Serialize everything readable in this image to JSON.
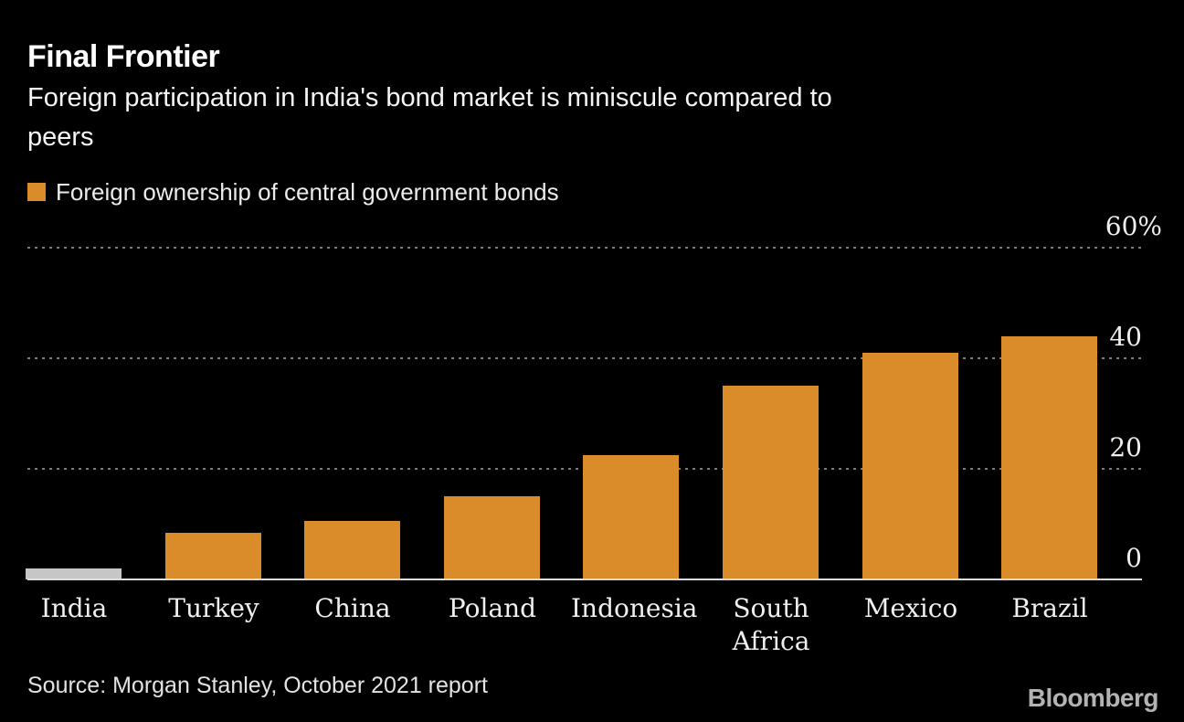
{
  "header": {
    "title": "Final Frontier",
    "subtitle": "Foreign participation in India's bond market is miniscule compared to\npeers"
  },
  "legend": {
    "label": "Foreign ownership of central government bonds",
    "swatch_color": "#DB8C2A"
  },
  "chart_data": {
    "type": "bar",
    "title": "Final Frontier",
    "subtitle": "Foreign participation in India's bond market is miniscule compared to peers",
    "series_name": "Foreign ownership of central government bonds",
    "categories": [
      "India",
      "Turkey",
      "China",
      "Poland",
      "Indonesia",
      "South Africa",
      "Mexico",
      "Brazil"
    ],
    "values": [
      2,
      8.5,
      10.5,
      15,
      22.5,
      35,
      41,
      44
    ],
    "unit": "%",
    "ylim": [
      0,
      60
    ],
    "yticks": [
      0,
      20,
      40,
      60
    ],
    "ytick_labels": [
      "0",
      "20",
      "40",
      "60%"
    ],
    "axis_side": "right",
    "grid": "dotted-horizontal",
    "legend_position": "top-left",
    "highlight_category": "India",
    "bar_colors": {
      "default": "#DB8C2A",
      "highlight": "#C6C6C6"
    }
  },
  "footer": {
    "source": "Source: Morgan Stanley, October 2021 report",
    "logo": "Bloomberg"
  },
  "colors": {
    "background": "#000000",
    "bar_orange": "#DB8C2A",
    "bar_india_gray": "#C6C6C6",
    "gridline": "#7B7B7B",
    "baseline": "#DCDCDC",
    "title_text": "#FFFFFF",
    "subtitle_text": "#F5F5F5",
    "axis_text": "#EFEFEF",
    "source_text": "#E3E3E3",
    "logo_text": "#B3B3B3"
  }
}
